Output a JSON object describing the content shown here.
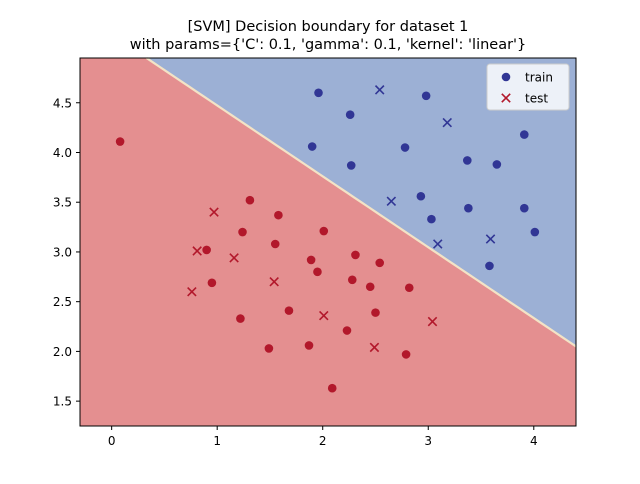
{
  "chart_data": {
    "type": "scatter",
    "title": "[SVM] Decision boundary for dataset 1",
    "subtitle": "with params={'C': 0.1, 'gamma': 0.1, 'kernel': 'linear'}",
    "xlabel": "",
    "ylabel": "",
    "xlim": [
      -0.3,
      4.4
    ],
    "ylim": [
      1.25,
      4.95
    ],
    "xticks": [
      "0",
      "1",
      "2",
      "3",
      "4"
    ],
    "yticks": [
      "1.5",
      "2.0",
      "2.5",
      "3.0",
      "3.5",
      "4.0",
      "4.5"
    ],
    "legend_position": "top-right",
    "legend": [
      {
        "label": "train",
        "marker": "circle"
      },
      {
        "label": "test",
        "marker": "x"
      }
    ],
    "colors": {
      "class_0": "#b2182b",
      "class_1": "#313695",
      "region_0": "#e48f90",
      "region_1": "#9cb0d5"
    },
    "decision_boundary": {
      "description_points": [
        [
          0.33,
          4.95
        ],
        [
          4.4,
          2.05
        ]
      ]
    },
    "series": [
      {
        "name": "train",
        "marker": "circle",
        "points": [
          {
            "x": 0.08,
            "y": 4.11,
            "class": 0
          },
          {
            "x": 0.9,
            "y": 3.02,
            "class": 0
          },
          {
            "x": 0.95,
            "y": 2.69,
            "class": 0
          },
          {
            "x": 1.22,
            "y": 2.33,
            "class": 0
          },
          {
            "x": 1.24,
            "y": 3.2,
            "class": 0
          },
          {
            "x": 1.31,
            "y": 3.52,
            "class": 0
          },
          {
            "x": 1.49,
            "y": 2.03,
            "class": 0
          },
          {
            "x": 1.55,
            "y": 3.08,
            "class": 0
          },
          {
            "x": 1.58,
            "y": 3.37,
            "class": 0
          },
          {
            "x": 1.68,
            "y": 2.41,
            "class": 0
          },
          {
            "x": 1.87,
            "y": 2.06,
            "class": 0
          },
          {
            "x": 1.89,
            "y": 2.92,
            "class": 0
          },
          {
            "x": 1.95,
            "y": 2.8,
            "class": 0
          },
          {
            "x": 2.01,
            "y": 3.21,
            "class": 0
          },
          {
            "x": 2.09,
            "y": 1.63,
            "class": 0
          },
          {
            "x": 2.23,
            "y": 2.21,
            "class": 0
          },
          {
            "x": 2.28,
            "y": 2.72,
            "class": 0
          },
          {
            "x": 2.31,
            "y": 2.97,
            "class": 0
          },
          {
            "x": 2.45,
            "y": 2.65,
            "class": 0
          },
          {
            "x": 2.5,
            "y": 2.39,
            "class": 0
          },
          {
            "x": 2.54,
            "y": 2.89,
            "class": 0
          },
          {
            "x": 2.79,
            "y": 1.97,
            "class": 0
          },
          {
            "x": 2.82,
            "y": 2.64,
            "class": 0
          },
          {
            "x": 1.9,
            "y": 4.06,
            "class": 1
          },
          {
            "x": 1.96,
            "y": 4.6,
            "class": 1
          },
          {
            "x": 2.26,
            "y": 4.38,
            "class": 1
          },
          {
            "x": 2.27,
            "y": 3.87,
            "class": 1
          },
          {
            "x": 2.78,
            "y": 4.05,
            "class": 1
          },
          {
            "x": 2.93,
            "y": 3.56,
            "class": 1
          },
          {
            "x": 2.98,
            "y": 4.57,
            "class": 1
          },
          {
            "x": 3.03,
            "y": 3.33,
            "class": 1
          },
          {
            "x": 3.37,
            "y": 3.92,
            "class": 1
          },
          {
            "x": 3.38,
            "y": 3.44,
            "class": 1
          },
          {
            "x": 3.58,
            "y": 2.86,
            "class": 1
          },
          {
            "x": 3.65,
            "y": 3.88,
            "class": 1
          },
          {
            "x": 3.91,
            "y": 4.18,
            "class": 1
          },
          {
            "x": 3.91,
            "y": 3.44,
            "class": 1
          },
          {
            "x": 4.01,
            "y": 3.2,
            "class": 1
          }
        ]
      },
      {
        "name": "test",
        "marker": "x",
        "points": [
          {
            "x": 0.76,
            "y": 2.6,
            "class": 0
          },
          {
            "x": 0.81,
            "y": 3.01,
            "class": 0
          },
          {
            "x": 0.97,
            "y": 3.4,
            "class": 0
          },
          {
            "x": 1.16,
            "y": 2.94,
            "class": 0
          },
          {
            "x": 1.54,
            "y": 2.7,
            "class": 0
          },
          {
            "x": 2.01,
            "y": 2.36,
            "class": 0
          },
          {
            "x": 2.49,
            "y": 2.04,
            "class": 0
          },
          {
            "x": 3.04,
            "y": 2.3,
            "class": 0
          },
          {
            "x": 2.54,
            "y": 4.63,
            "class": 1
          },
          {
            "x": 2.65,
            "y": 3.51,
            "class": 1
          },
          {
            "x": 3.09,
            "y": 3.08,
            "class": 1
          },
          {
            "x": 3.18,
            "y": 4.3,
            "class": 1
          },
          {
            "x": 3.59,
            "y": 3.13,
            "class": 1
          }
        ]
      }
    ]
  }
}
